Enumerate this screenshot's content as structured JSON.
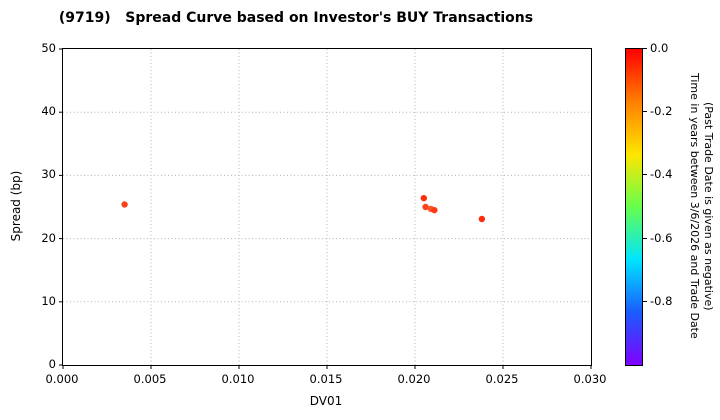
{
  "chart_data": {
    "type": "scatter",
    "title": "(9719)   Spread Curve based on Investor's BUY Transactions",
    "xlabel": "DV01",
    "ylabel": "Spread (bp)",
    "xlim": [
      0.0,
      0.03
    ],
    "ylim": [
      0,
      50
    ],
    "grid": "dotted",
    "xticks": [
      0.0,
      0.005,
      0.01,
      0.015,
      0.02,
      0.025,
      0.03
    ],
    "xtick_labels": [
      "0.000",
      "0.005",
      "0.010",
      "0.015",
      "0.020",
      "0.025",
      "0.030"
    ],
    "yticks": [
      0,
      10,
      20,
      30,
      40,
      50
    ],
    "ytick_labels": [
      "0",
      "10",
      "20",
      "30",
      "40",
      "50"
    ],
    "points": [
      {
        "x": 0.0035,
        "y": 25.4,
        "color": "#ff4219"
      },
      {
        "x": 0.0205,
        "y": 26.4,
        "color": "#ff2d0e"
      },
      {
        "x": 0.0206,
        "y": 25.0,
        "color": "#ff4219"
      },
      {
        "x": 0.0209,
        "y": 24.7,
        "color": "#ff5526"
      },
      {
        "x": 0.0211,
        "y": 24.5,
        "color": "#ff3a14"
      },
      {
        "x": 0.0238,
        "y": 23.1,
        "color": "#ff2d0e"
      }
    ],
    "colorbar": {
      "label_line1": "Time in years between 3/6/2026 and Trade Date",
      "label_line2": "(Past Trade Date is given as negative)",
      "range": [
        0.0,
        -1.0
      ],
      "ticks": [
        0.0,
        -0.2,
        -0.4,
        -0.6,
        -0.8
      ],
      "tick_labels": [
        "0.0",
        "-0.2",
        "-0.4",
        "-0.6",
        "-0.8"
      ],
      "colors": [
        "#ff0000",
        "#ff7f00",
        "#ffe600",
        "#66ff4d",
        "#00e5ff",
        "#1a5cff",
        "#8000ff"
      ]
    },
    "grid_color": "#b3b3b3",
    "marker_radius": 3.2
  }
}
